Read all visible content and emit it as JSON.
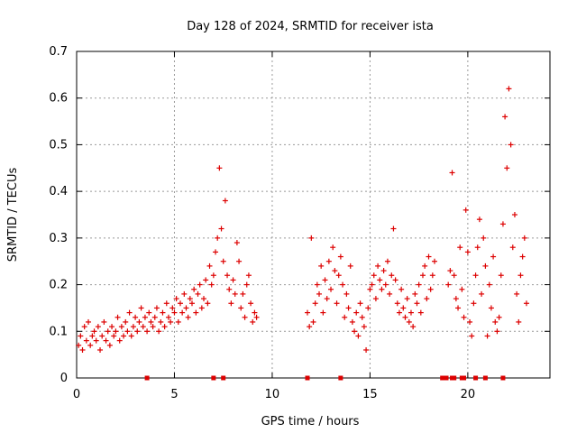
{
  "chart_data": {
    "type": "scatter",
    "title": "Day 128 of 2024, SRMTID for receiver ista",
    "xlabel": "GPS time / hours",
    "ylabel": "SRMTID / TECUs",
    "xlim": [
      0,
      24.2
    ],
    "ylim": [
      0,
      0.7
    ],
    "xticks": [
      0,
      5,
      10,
      15,
      20
    ],
    "xtick_labels": [
      "0",
      "5",
      "10",
      "15",
      "20"
    ],
    "yticks": [
      0,
      0.1,
      0.2,
      0.3,
      0.4,
      0.5,
      0.6,
      0.7
    ],
    "ytick_labels": [
      "0",
      "0.1",
      "0.2",
      "0.3",
      "0.4",
      "0.5",
      "0.6",
      "0.7"
    ],
    "grid": true,
    "marker": "+",
    "color": "#dd0000",
    "series": [
      {
        "name": "SRMTID",
        "x": [
          0.1,
          0.2,
          0.3,
          0.4,
          0.5,
          0.6,
          0.7,
          0.8,
          0.9,
          1.0,
          1.1,
          1.2,
          1.3,
          1.4,
          1.5,
          1.6,
          1.7,
          1.8,
          1.9,
          2.0,
          2.1,
          2.2,
          2.3,
          2.4,
          2.5,
          2.6,
          2.7,
          2.8,
          2.9,
          3.0,
          3.1,
          3.2,
          3.3,
          3.4,
          3.5,
          3.6,
          3.7,
          3.8,
          3.9,
          4.0,
          4.1,
          4.2,
          4.3,
          4.4,
          4.5,
          4.6,
          4.7,
          4.8,
          4.9,
          5.0,
          5.1,
          5.2,
          5.3,
          5.4,
          5.5,
          5.6,
          5.7,
          5.8,
          5.9,
          6.0,
          6.1,
          6.2,
          6.3,
          6.4,
          6.5,
          6.6,
          6.7,
          6.8,
          6.9,
          7.0,
          7.1,
          7.2,
          7.3,
          7.4,
          7.5,
          7.6,
          7.7,
          7.8,
          7.9,
          8.0,
          8.1,
          8.2,
          8.3,
          8.4,
          8.5,
          8.6,
          8.7,
          8.8,
          8.9,
          9.0,
          9.1,
          9.2,
          11.8,
          11.9,
          12.0,
          12.1,
          12.2,
          12.3,
          12.4,
          12.5,
          12.6,
          12.7,
          12.8,
          12.9,
          13.0,
          13.1,
          13.2,
          13.3,
          13.4,
          13.5,
          13.6,
          13.7,
          13.8,
          13.9,
          14.0,
          14.1,
          14.2,
          14.3,
          14.4,
          14.5,
          14.6,
          14.7,
          14.8,
          14.9,
          15.0,
          15.1,
          15.2,
          15.3,
          15.4,
          15.5,
          15.6,
          15.7,
          15.8,
          15.9,
          16.0,
          16.1,
          16.2,
          16.3,
          16.4,
          16.5,
          16.6,
          16.7,
          16.8,
          16.9,
          17.0,
          17.1,
          17.2,
          17.3,
          17.4,
          17.5,
          17.6,
          17.7,
          17.8,
          17.9,
          18.0,
          18.1,
          18.2,
          18.3,
          19.0,
          19.1,
          19.2,
          19.3,
          19.4,
          19.5,
          19.6,
          19.7,
          19.8,
          19.9,
          20.0,
          20.1,
          20.2,
          20.3,
          20.4,
          20.5,
          20.6,
          20.7,
          20.8,
          20.9,
          21.0,
          21.1,
          21.2,
          21.3,
          21.4,
          21.5,
          21.6,
          21.7,
          21.8,
          21.9,
          22.0,
          22.1,
          22.2,
          22.3,
          22.4,
          22.5,
          22.6,
          22.7,
          22.8,
          22.9,
          23.0
        ],
        "y": [
          0.07,
          0.09,
          0.06,
          0.11,
          0.08,
          0.12,
          0.07,
          0.09,
          0.1,
          0.08,
          0.11,
          0.06,
          0.09,
          0.12,
          0.08,
          0.1,
          0.07,
          0.11,
          0.09,
          0.1,
          0.13,
          0.08,
          0.11,
          0.09,
          0.12,
          0.1,
          0.14,
          0.09,
          0.11,
          0.13,
          0.1,
          0.12,
          0.15,
          0.11,
          0.13,
          0.1,
          0.14,
          0.12,
          0.11,
          0.13,
          0.15,
          0.1,
          0.12,
          0.14,
          0.11,
          0.16,
          0.13,
          0.12,
          0.15,
          0.14,
          0.17,
          0.12,
          0.16,
          0.14,
          0.18,
          0.15,
          0.13,
          0.17,
          0.16,
          0.19,
          0.14,
          0.18,
          0.2,
          0.15,
          0.17,
          0.21,
          0.16,
          0.24,
          0.2,
          0.22,
          0.27,
          0.3,
          0.45,
          0.32,
          0.25,
          0.38,
          0.22,
          0.19,
          0.16,
          0.21,
          0.18,
          0.29,
          0.25,
          0.15,
          0.18,
          0.13,
          0.2,
          0.22,
          0.16,
          0.12,
          0.14,
          0.13,
          0.14,
          0.11,
          0.3,
          0.12,
          0.16,
          0.2,
          0.18,
          0.24,
          0.14,
          0.21,
          0.17,
          0.25,
          0.19,
          0.28,
          0.23,
          0.16,
          0.22,
          0.26,
          0.2,
          0.13,
          0.18,
          0.15,
          0.24,
          0.12,
          0.1,
          0.14,
          0.09,
          0.16,
          0.13,
          0.11,
          0.06,
          0.15,
          0.19,
          0.2,
          0.22,
          0.17,
          0.24,
          0.21,
          0.19,
          0.23,
          0.2,
          0.25,
          0.18,
          0.22,
          0.32,
          0.21,
          0.16,
          0.14,
          0.19,
          0.15,
          0.13,
          0.17,
          0.12,
          0.14,
          0.11,
          0.18,
          0.16,
          0.2,
          0.14,
          0.22,
          0.24,
          0.17,
          0.26,
          0.19,
          0.22,
          0.25,
          0.2,
          0.23,
          0.44,
          0.22,
          0.17,
          0.15,
          0.28,
          0.19,
          0.13,
          0.36,
          0.27,
          0.12,
          0.09,
          0.16,
          0.22,
          0.28,
          0.34,
          0.18,
          0.3,
          0.24,
          0.09,
          0.2,
          0.15,
          0.26,
          0.12,
          0.1,
          0.13,
          0.22,
          0.33,
          0.56,
          0.45,
          0.62,
          0.5,
          0.28,
          0.35,
          0.18,
          0.12,
          0.22,
          0.26,
          0.3,
          0.16
        ],
        "markers_at_zero": [
          3.6,
          7.0,
          7.5,
          11.8,
          13.5,
          18.7,
          18.9,
          19.2,
          19.3,
          19.7,
          19.8,
          20.4,
          20.9,
          21.8
        ]
      }
    ]
  }
}
